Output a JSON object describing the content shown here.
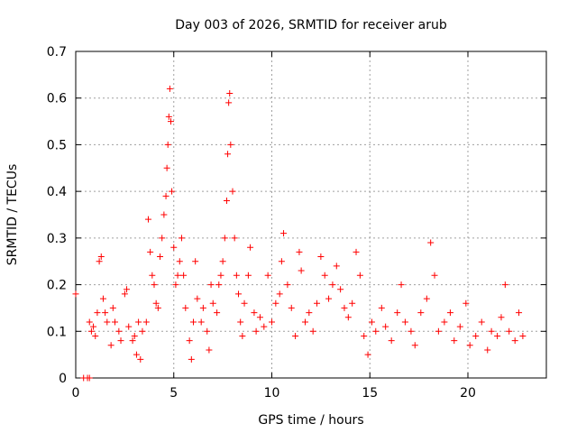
{
  "chart_data": {
    "type": "scatter",
    "title": "Day 003 of 2026, SRMTID for receiver arub",
    "xlabel": "GPS time / hours",
    "ylabel": "SRMTID / TECUs",
    "xlim": [
      0,
      24
    ],
    "ylim": [
      0,
      0.7
    ],
    "x_ticks": [
      0,
      5,
      10,
      15,
      20
    ],
    "x_tick_labels": [
      "0",
      "5",
      "10",
      "15",
      "20"
    ],
    "y_ticks": [
      0,
      0.1,
      0.2,
      0.3,
      0.4,
      0.5,
      0.6,
      0.7
    ],
    "y_tick_labels": [
      "0",
      "0.1",
      "0.2",
      "0.3",
      "0.4",
      "0.5",
      "0.6",
      "0.7"
    ],
    "grid": true,
    "marker": "+",
    "series": [
      {
        "name": "SRMTID",
        "color": "#ff0000",
        "points": [
          [
            0.0,
            0.18
          ],
          [
            0.4,
            0.0
          ],
          [
            0.6,
            0.0
          ],
          [
            0.7,
            0.0
          ],
          [
            0.7,
            0.12
          ],
          [
            0.8,
            0.1
          ],
          [
            0.9,
            0.11
          ],
          [
            1.0,
            0.09
          ],
          [
            1.1,
            0.14
          ],
          [
            1.2,
            0.25
          ],
          [
            1.3,
            0.26
          ],
          [
            1.4,
            0.17
          ],
          [
            1.5,
            0.14
          ],
          [
            1.6,
            0.12
          ],
          [
            1.8,
            0.07
          ],
          [
            1.9,
            0.15
          ],
          [
            2.0,
            0.12
          ],
          [
            2.2,
            0.1
          ],
          [
            2.3,
            0.08
          ],
          [
            2.5,
            0.18
          ],
          [
            2.6,
            0.19
          ],
          [
            2.7,
            0.11
          ],
          [
            2.9,
            0.08
          ],
          [
            3.0,
            0.09
          ],
          [
            3.1,
            0.05
          ],
          [
            3.2,
            0.12
          ],
          [
            3.3,
            0.04
          ],
          [
            3.4,
            0.1
          ],
          [
            3.6,
            0.12
          ],
          [
            3.7,
            0.34
          ],
          [
            3.8,
            0.27
          ],
          [
            3.9,
            0.22
          ],
          [
            4.0,
            0.2
          ],
          [
            4.1,
            0.16
          ],
          [
            4.2,
            0.15
          ],
          [
            4.3,
            0.26
          ],
          [
            4.4,
            0.3
          ],
          [
            4.5,
            0.35
          ],
          [
            4.6,
            0.39
          ],
          [
            4.65,
            0.45
          ],
          [
            4.7,
            0.5
          ],
          [
            4.75,
            0.56
          ],
          [
            4.8,
            0.62
          ],
          [
            4.85,
            0.55
          ],
          [
            4.9,
            0.4
          ],
          [
            5.0,
            0.28
          ],
          [
            5.1,
            0.2
          ],
          [
            5.2,
            0.22
          ],
          [
            5.3,
            0.25
          ],
          [
            5.4,
            0.3
          ],
          [
            5.5,
            0.22
          ],
          [
            5.6,
            0.15
          ],
          [
            5.8,
            0.08
          ],
          [
            5.9,
            0.04
          ],
          [
            6.0,
            0.12
          ],
          [
            6.1,
            0.25
          ],
          [
            6.2,
            0.17
          ],
          [
            6.4,
            0.12
          ],
          [
            6.5,
            0.15
          ],
          [
            6.7,
            0.1
          ],
          [
            6.8,
            0.06
          ],
          [
            6.9,
            0.2
          ],
          [
            7.0,
            0.16
          ],
          [
            7.2,
            0.14
          ],
          [
            7.3,
            0.2
          ],
          [
            7.4,
            0.22
          ],
          [
            7.5,
            0.25
          ],
          [
            7.6,
            0.3
          ],
          [
            7.7,
            0.38
          ],
          [
            7.75,
            0.48
          ],
          [
            7.8,
            0.59
          ],
          [
            7.85,
            0.61
          ],
          [
            7.9,
            0.5
          ],
          [
            8.0,
            0.4
          ],
          [
            8.1,
            0.3
          ],
          [
            8.2,
            0.22
          ],
          [
            8.3,
            0.18
          ],
          [
            8.4,
            0.12
          ],
          [
            8.5,
            0.09
          ],
          [
            8.6,
            0.16
          ],
          [
            8.8,
            0.22
          ],
          [
            8.9,
            0.28
          ],
          [
            9.1,
            0.14
          ],
          [
            9.2,
            0.1
          ],
          [
            9.4,
            0.13
          ],
          [
            9.6,
            0.11
          ],
          [
            9.8,
            0.22
          ],
          [
            10.0,
            0.12
          ],
          [
            10.2,
            0.16
          ],
          [
            10.4,
            0.18
          ],
          [
            10.5,
            0.25
          ],
          [
            10.6,
            0.31
          ],
          [
            10.8,
            0.2
          ],
          [
            11.0,
            0.15
          ],
          [
            11.2,
            0.09
          ],
          [
            11.4,
            0.27
          ],
          [
            11.5,
            0.23
          ],
          [
            11.7,
            0.12
          ],
          [
            11.9,
            0.14
          ],
          [
            12.1,
            0.1
          ],
          [
            12.3,
            0.16
          ],
          [
            12.5,
            0.26
          ],
          [
            12.7,
            0.22
          ],
          [
            12.9,
            0.17
          ],
          [
            13.1,
            0.2
          ],
          [
            13.3,
            0.24
          ],
          [
            13.5,
            0.19
          ],
          [
            13.7,
            0.15
          ],
          [
            13.9,
            0.13
          ],
          [
            14.1,
            0.16
          ],
          [
            14.3,
            0.27
          ],
          [
            14.5,
            0.22
          ],
          [
            14.7,
            0.09
          ],
          [
            14.9,
            0.05
          ],
          [
            15.1,
            0.12
          ],
          [
            15.3,
            0.1
          ],
          [
            15.6,
            0.15
          ],
          [
            15.8,
            0.11
          ],
          [
            16.1,
            0.08
          ],
          [
            16.4,
            0.14
          ],
          [
            16.6,
            0.2
          ],
          [
            16.8,
            0.12
          ],
          [
            17.1,
            0.1
          ],
          [
            17.3,
            0.07
          ],
          [
            17.6,
            0.14
          ],
          [
            17.9,
            0.17
          ],
          [
            18.1,
            0.29
          ],
          [
            18.3,
            0.22
          ],
          [
            18.5,
            0.1
          ],
          [
            18.8,
            0.12
          ],
          [
            19.1,
            0.14
          ],
          [
            19.3,
            0.08
          ],
          [
            19.6,
            0.11
          ],
          [
            19.9,
            0.16
          ],
          [
            20.1,
            0.07
          ],
          [
            20.4,
            0.09
          ],
          [
            20.7,
            0.12
          ],
          [
            21.0,
            0.06
          ],
          [
            21.2,
            0.1
          ],
          [
            21.5,
            0.09
          ],
          [
            21.7,
            0.13
          ],
          [
            21.9,
            0.2
          ],
          [
            22.1,
            0.1
          ],
          [
            22.4,
            0.08
          ],
          [
            22.6,
            0.14
          ],
          [
            22.8,
            0.09
          ]
        ]
      }
    ]
  }
}
